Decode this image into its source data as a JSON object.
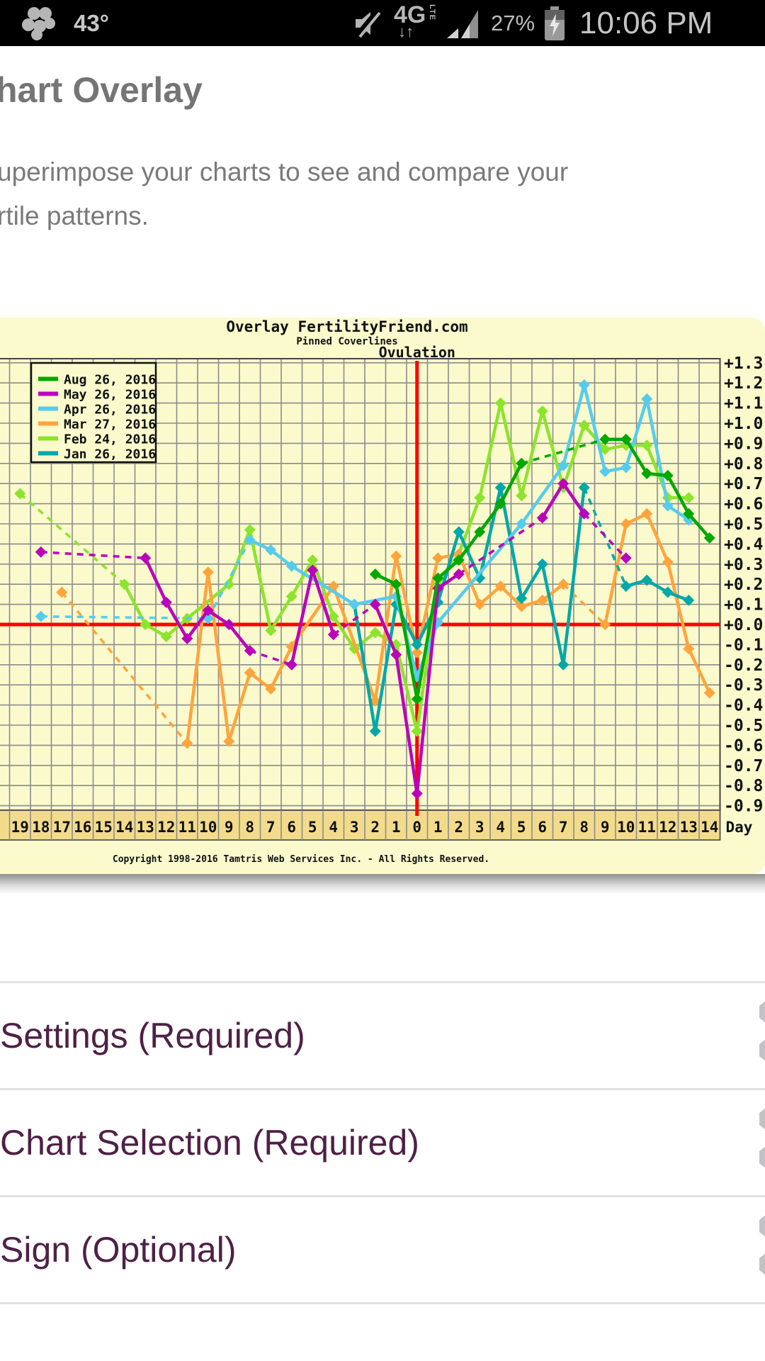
{
  "status_bar": {
    "temperature": "43°",
    "battery_percent": "27%",
    "time": "10:06 PM",
    "icons": [
      "flower-icon",
      "mute-icon",
      "4g-lte-icon",
      "signal-icon",
      "battery-charging-icon"
    ],
    "network_label_big": "4G",
    "network_label_small": "LTE"
  },
  "page": {
    "title": "hart Overlay",
    "subtitle_line1": "uperimpose your charts to see and compare your",
    "subtitle_line2": "rtile patterns."
  },
  "chart_data": {
    "type": "line",
    "title": "Overlay FertilityFriend.com",
    "subtitle": "Pinned Coverlines",
    "pinned_label": "Ovulation",
    "x_axis_label": "Day",
    "copyright": "Copyright 1998-2016 Tamtris Web Services Inc. - All Rights Reserved.",
    "x_range": [
      -19,
      14
    ],
    "y_range": [
      -0.9,
      1.3
    ],
    "y_tick_step": 0.1,
    "grid": true,
    "legend_position": "top-left",
    "colors": {
      "background": "#fafacd",
      "axis_strip": "#f2dc8c",
      "gridline": "#8c8c8c",
      "frame": "#444444",
      "crosshair": "#ff0000",
      "text": "#111111"
    },
    "series": [
      {
        "name": "Aug 26, 2016",
        "color": "#00a800",
        "points": [
          [
            -2,
            0.25
          ],
          [
            -1,
            0.2
          ],
          [
            0,
            -0.37
          ],
          [
            1,
            0.23
          ],
          [
            2,
            0.32
          ],
          [
            3,
            0.46
          ],
          [
            4,
            0.6
          ],
          [
            5,
            0.8
          ],
          [
            9,
            0.92
          ],
          [
            10,
            0.92
          ],
          [
            11,
            0.75
          ],
          [
            12,
            0.74
          ],
          [
            13,
            0.55
          ],
          [
            14,
            0.43
          ]
        ],
        "dashed_ranges": [
          [
            5,
            9
          ]
        ]
      },
      {
        "name": "May 26, 2016",
        "color": "#bb00bb",
        "points": [
          [
            -18,
            0.36
          ],
          [
            -13,
            0.33
          ],
          [
            -12,
            0.11
          ],
          [
            -11,
            -0.07
          ],
          [
            -10,
            0.07
          ],
          [
            -9,
            0.0
          ],
          [
            -8,
            -0.13
          ],
          [
            -6,
            -0.2
          ],
          [
            -5,
            0.27
          ],
          [
            -4,
            -0.05
          ],
          [
            -2,
            0.1
          ],
          [
            -1,
            -0.15
          ],
          [
            0,
            -0.84
          ],
          [
            1,
            0.18
          ],
          [
            2,
            0.25
          ],
          [
            6,
            0.53
          ],
          [
            7,
            0.7
          ],
          [
            8,
            0.55
          ],
          [
            10,
            0.33
          ]
        ],
        "dashed_ranges": [
          [
            -18,
            -13
          ],
          [
            -8,
            -6
          ],
          [
            -4,
            -2
          ],
          [
            2,
            6
          ],
          [
            8,
            10
          ]
        ]
      },
      {
        "name": "Apr 26, 2016",
        "color": "#55ccee",
        "points": [
          [
            -18,
            0.04
          ],
          [
            -10,
            0.03
          ],
          [
            -8,
            0.42
          ],
          [
            -7,
            0.37
          ],
          [
            -6,
            0.29
          ],
          [
            -3,
            0.1
          ],
          [
            -1,
            0.14
          ],
          [
            0,
            -0.26
          ],
          [
            1,
            0.01
          ],
          [
            5,
            0.5
          ],
          [
            7,
            0.79
          ],
          [
            8,
            1.19
          ],
          [
            9,
            0.76
          ],
          [
            10,
            0.78
          ],
          [
            11,
            1.12
          ],
          [
            12,
            0.59
          ],
          [
            13,
            0.52
          ]
        ],
        "dashed_ranges": [
          [
            -18,
            -8
          ]
        ]
      },
      {
        "name": "Mar 27, 2016",
        "color": "#ffa43c",
        "points": [
          [
            -17,
            0.16
          ],
          [
            -11,
            -0.59
          ],
          [
            -10,
            0.26
          ],
          [
            -9,
            -0.58
          ],
          [
            -8,
            -0.24
          ],
          [
            -7,
            -0.32
          ],
          [
            -6,
            -0.11
          ],
          [
            -4,
            0.19
          ],
          [
            -2,
            -0.38
          ],
          [
            -1,
            0.34
          ],
          [
            0,
            -0.14
          ],
          [
            1,
            0.33
          ],
          [
            2,
            0.35
          ],
          [
            3,
            0.1
          ],
          [
            4,
            0.19
          ],
          [
            5,
            0.09
          ],
          [
            6,
            0.12
          ],
          [
            7,
            0.2
          ],
          [
            9,
            0.0
          ],
          [
            10,
            0.5
          ],
          [
            11,
            0.55
          ],
          [
            12,
            0.31
          ],
          [
            13,
            -0.12
          ],
          [
            14,
            -0.34
          ]
        ],
        "dashed_ranges": [
          [
            -17,
            -11
          ],
          [
            7,
            9
          ]
        ]
      },
      {
        "name": "Feb 24, 2016",
        "color": "#8ce42c",
        "points": [
          [
            -19,
            0.65
          ],
          [
            -14,
            0.2
          ],
          [
            -13,
            0.0
          ],
          [
            -12,
            -0.06
          ],
          [
            -11,
            0.03
          ],
          [
            -9,
            0.2
          ],
          [
            -8,
            0.47
          ],
          [
            -7,
            -0.03
          ],
          [
            -6,
            0.14
          ],
          [
            -5,
            0.32
          ],
          [
            -4,
            0.04
          ],
          [
            -3,
            -0.12
          ],
          [
            -2,
            -0.04
          ],
          [
            -1,
            -0.1
          ],
          [
            0,
            -0.53
          ],
          [
            1,
            0.2
          ],
          [
            2,
            0.35
          ],
          [
            3,
            0.63
          ],
          [
            4,
            1.1
          ],
          [
            5,
            0.64
          ],
          [
            6,
            1.06
          ],
          [
            7,
            0.68
          ],
          [
            8,
            0.99
          ],
          [
            9,
            0.87
          ],
          [
            10,
            0.89
          ],
          [
            11,
            0.89
          ],
          [
            12,
            0.63
          ],
          [
            13,
            0.63
          ]
        ],
        "dashed_ranges": [
          [
            -19,
            -14
          ]
        ]
      },
      {
        "name": "Jan 26, 2016",
        "color": "#00a8a8",
        "points": [
          [
            -3,
            0.1
          ],
          [
            -2,
            -0.53
          ],
          [
            -1,
            0.1
          ],
          [
            0,
            -0.1
          ],
          [
            1,
            0.11
          ],
          [
            2,
            0.46
          ],
          [
            3,
            0.23
          ],
          [
            4,
            0.68
          ],
          [
            5,
            0.13
          ],
          [
            6,
            0.3
          ],
          [
            7,
            -0.2
          ],
          [
            8,
            0.68
          ],
          [
            10,
            0.19
          ],
          [
            11,
            0.22
          ],
          [
            12,
            0.16
          ],
          [
            13,
            0.12
          ]
        ],
        "dashed_ranges": [
          [
            8,
            10
          ]
        ]
      }
    ]
  },
  "sections": [
    {
      "label": "Settings (Required)"
    },
    {
      "label": "Chart Selection (Required)"
    },
    {
      "label": "Sign (Optional)"
    }
  ]
}
